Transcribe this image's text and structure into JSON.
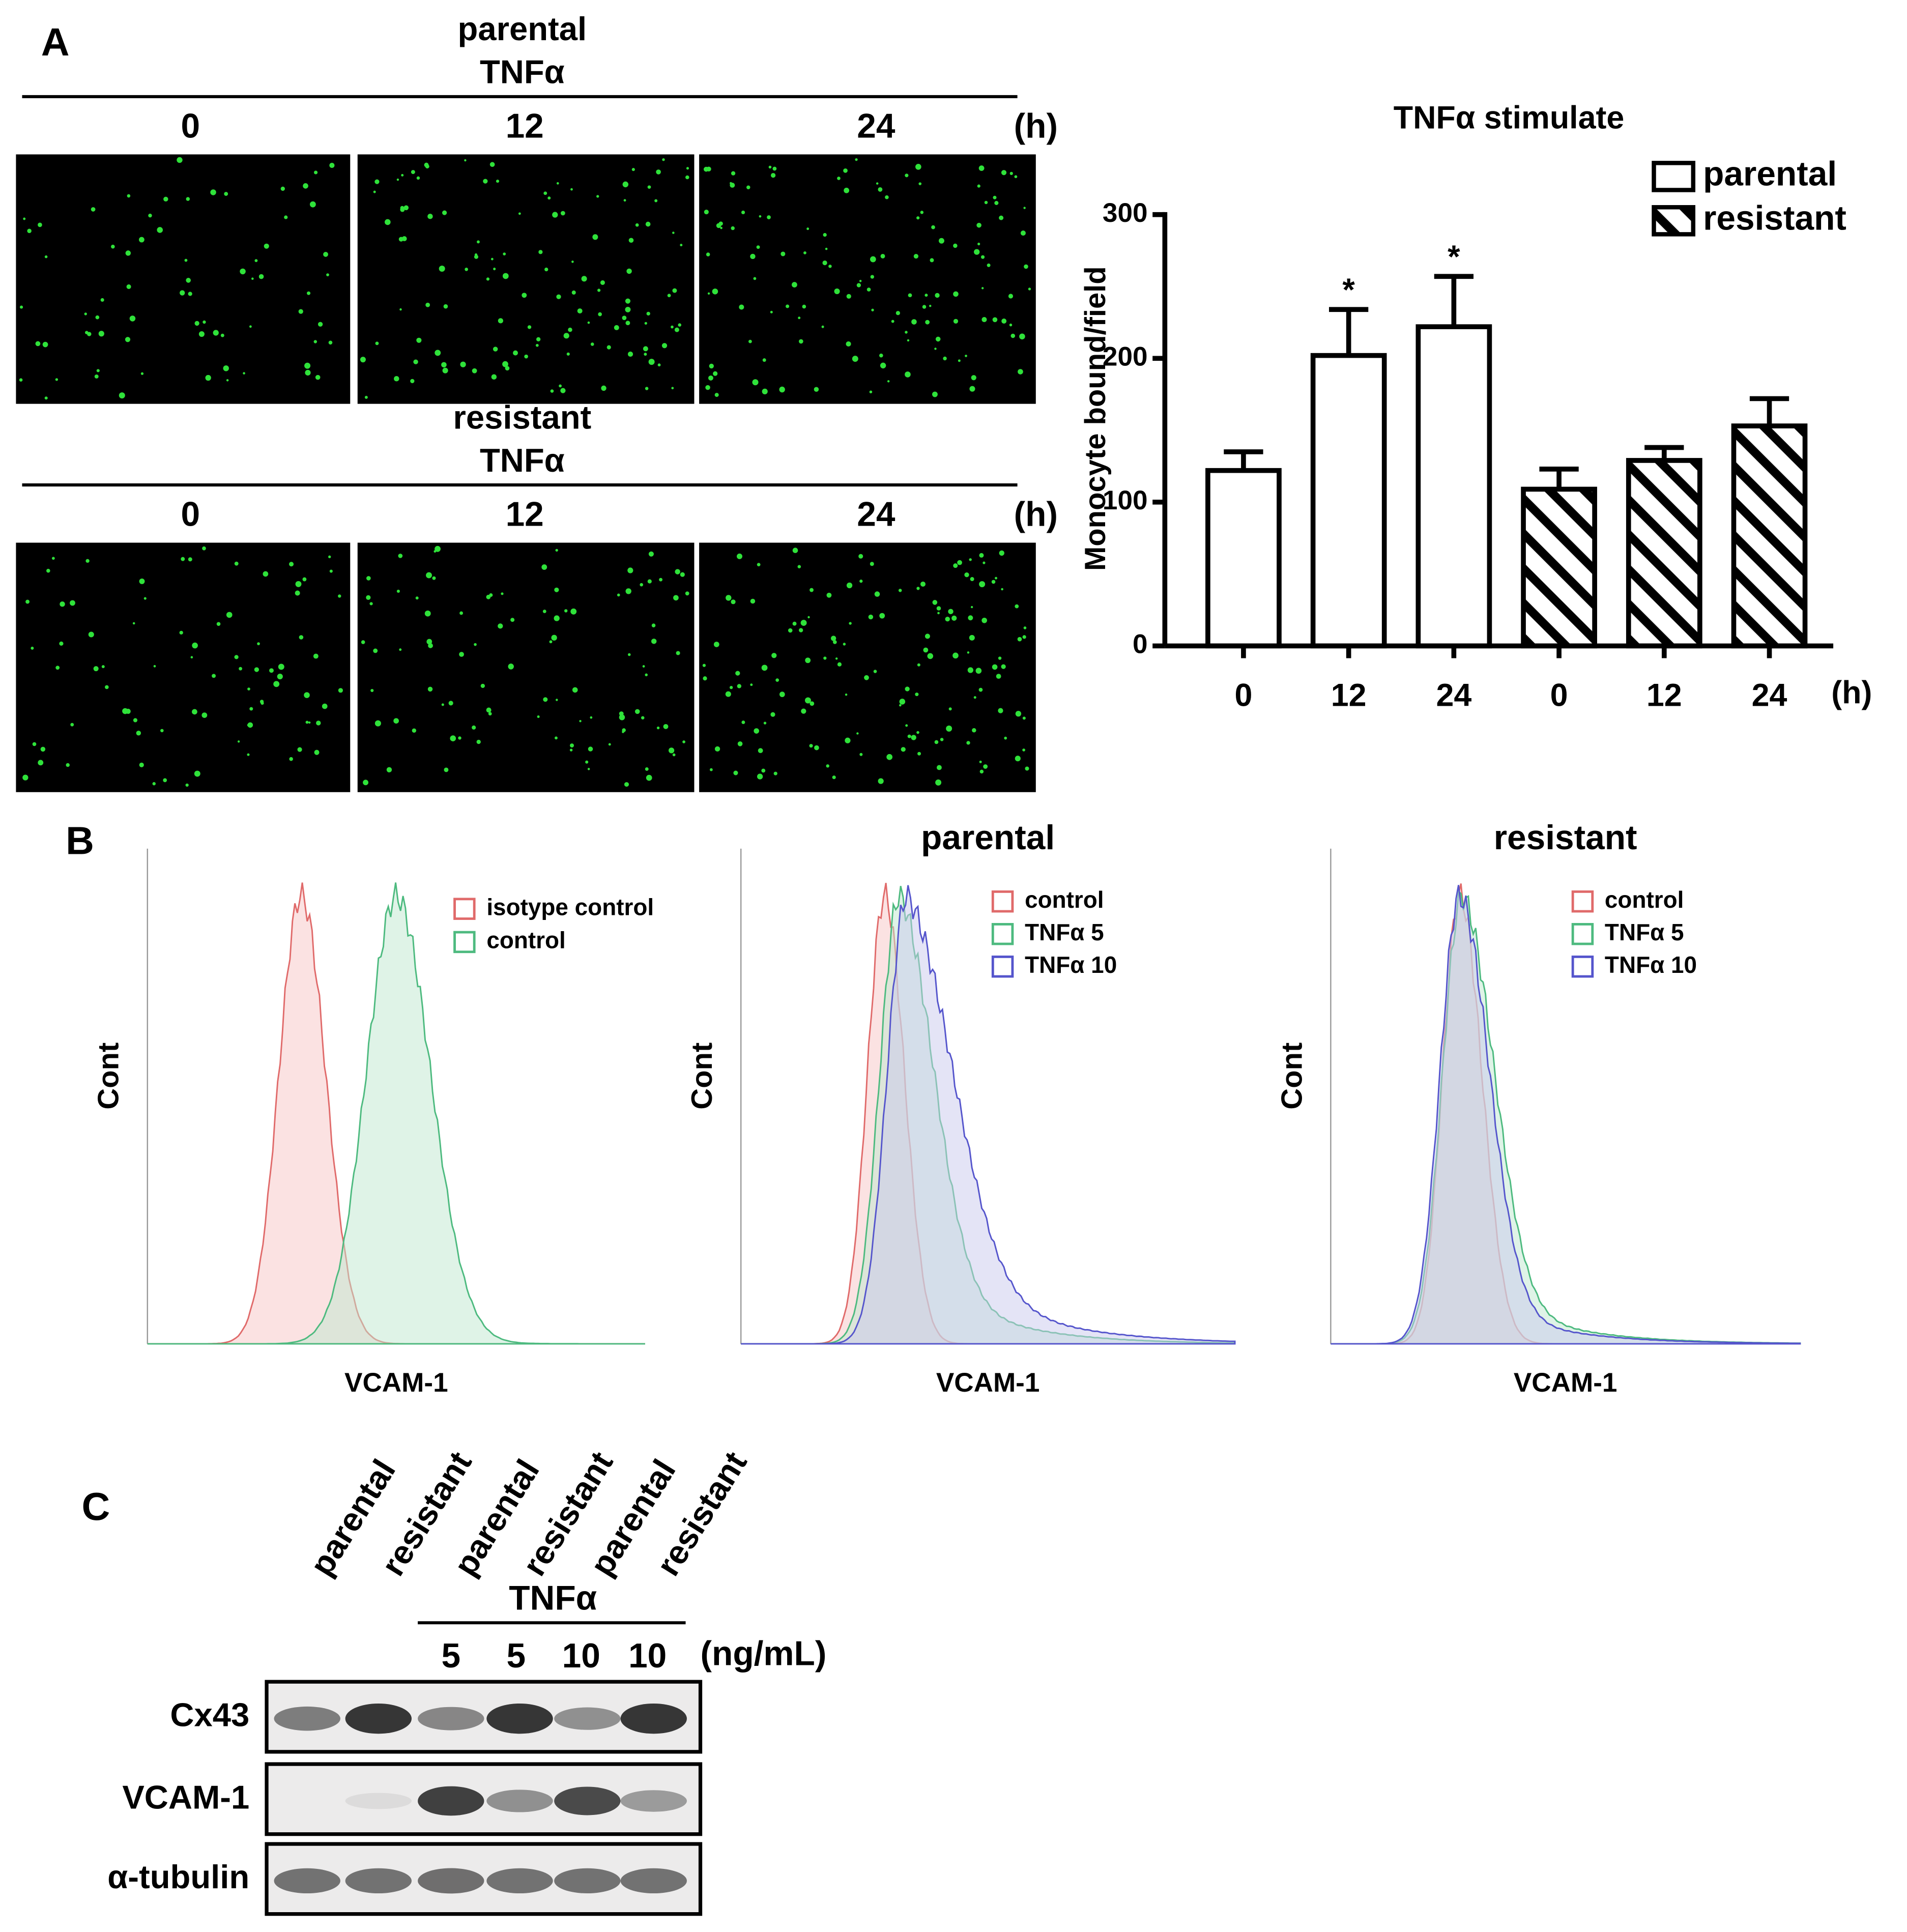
{
  "panel_a": {
    "label": "A",
    "groups": [
      {
        "name": "parental",
        "treatment": "TNFα",
        "times": [
          "0",
          "12",
          "24"
        ],
        "unit": "(h)"
      },
      {
        "name": "resistant",
        "treatment": "TNFα",
        "times": [
          "0",
          "12",
          "24"
        ],
        "unit": "(h)"
      }
    ]
  },
  "chart_data": {
    "type": "bar",
    "title": "TNFα stimulate",
    "y_label": "Monocyte bound/field",
    "x_unit": "(h)",
    "categories": [
      "0",
      "12",
      "24",
      "0",
      "12",
      "24"
    ],
    "series": [
      {
        "name": "parental",
        "color": "#000000",
        "fill": "#ffffff",
        "hatch": false,
        "values": [
          122,
          202,
          222,
          null,
          null,
          null
        ],
        "errors": [
          13,
          32,
          35,
          null,
          null,
          null
        ],
        "significance": [
          null,
          "*",
          "*",
          null,
          null,
          null
        ]
      },
      {
        "name": "resistant",
        "color": "#000000",
        "fill": "#ffffff",
        "hatch": true,
        "values": [
          null,
          null,
          null,
          109,
          129,
          153
        ],
        "errors": [
          null,
          null,
          null,
          14,
          9,
          19
        ]
      }
    ],
    "ylim": [
      0,
      300
    ],
    "yticks": [
      0,
      100,
      200,
      300
    ],
    "legend": "top-right"
  },
  "panel_b": {
    "label": "B",
    "plots": [
      {
        "legend": [
          "isotype control",
          "control"
        ],
        "x_label": "VCAM-1",
        "y_label": "Cont"
      },
      {
        "title": "parental",
        "legend": [
          "control",
          "TNFα 5",
          "TNFα 10"
        ],
        "x_label": "VCAM-1",
        "y_label": "Cont"
      },
      {
        "title": "resistant",
        "legend": [
          "control",
          "TNFα 5",
          "TNFα 10"
        ],
        "x_label": "VCAM-1",
        "y_label": "Cont"
      }
    ]
  },
  "panel_c": {
    "label": "C",
    "lanes": [
      "parental",
      "resistant",
      "parental",
      "resistant",
      "parental",
      "resistant"
    ],
    "treatment": "TNFα",
    "doses": [
      "5",
      "5",
      "10",
      "10"
    ],
    "dose_unit": "(ng/mL)",
    "rows": [
      "Cx43",
      "VCAM-1",
      "α-tubulin"
    ]
  }
}
